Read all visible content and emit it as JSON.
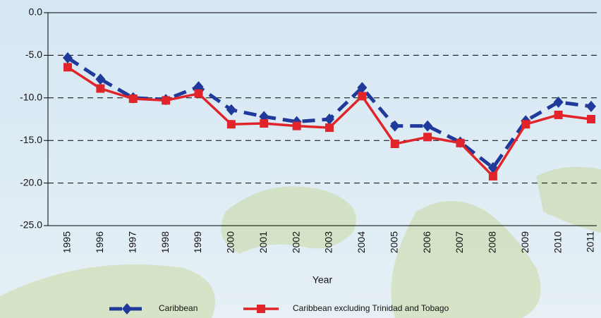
{
  "chart_data": {
    "type": "line",
    "x_label": "Year",
    "categories": [
      "1995",
      "1996",
      "1997",
      "1998",
      "1999",
      "2000",
      "2001",
      "2002",
      "2003",
      "2004",
      "2005",
      "2006",
      "2007",
      "2008",
      "2009",
      "2010",
      "2011"
    ],
    "series": [
      {
        "name": "Caribbean",
        "color": "#1f3a9a",
        "line_style": "dashed",
        "marker": "diamond",
        "values": [
          -5.3,
          -7.8,
          -10.0,
          -10.2,
          -8.7,
          -11.4,
          -12.2,
          -12.8,
          -12.5,
          -8.8,
          -13.3,
          -13.3,
          -15.2,
          -18.2,
          -12.7,
          -10.5,
          -11.0
        ]
      },
      {
        "name": "Caribbean excluding Trinidad and Tobago",
        "color": "#e0242a",
        "line_style": "solid",
        "marker": "square",
        "values": [
          -6.4,
          -8.9,
          -10.1,
          -10.3,
          -9.5,
          -13.1,
          -13.0,
          -13.3,
          -13.5,
          -9.8,
          -15.4,
          -14.6,
          -15.3,
          -19.2,
          -13.1,
          -12.0,
          -12.5
        ]
      }
    ],
    "ylim": [
      -25,
      0
    ],
    "yticks": [
      {
        "value": 0,
        "label": "0.0"
      },
      {
        "value": -5,
        "label": "-5.0"
      },
      {
        "value": -10,
        "label": "-10.0"
      },
      {
        "value": -15,
        "label": "-15.0"
      },
      {
        "value": -20,
        "label": "-20.0"
      },
      {
        "value": -25,
        "label": "-25.0"
      }
    ],
    "grid": true,
    "legend": "bottom"
  }
}
